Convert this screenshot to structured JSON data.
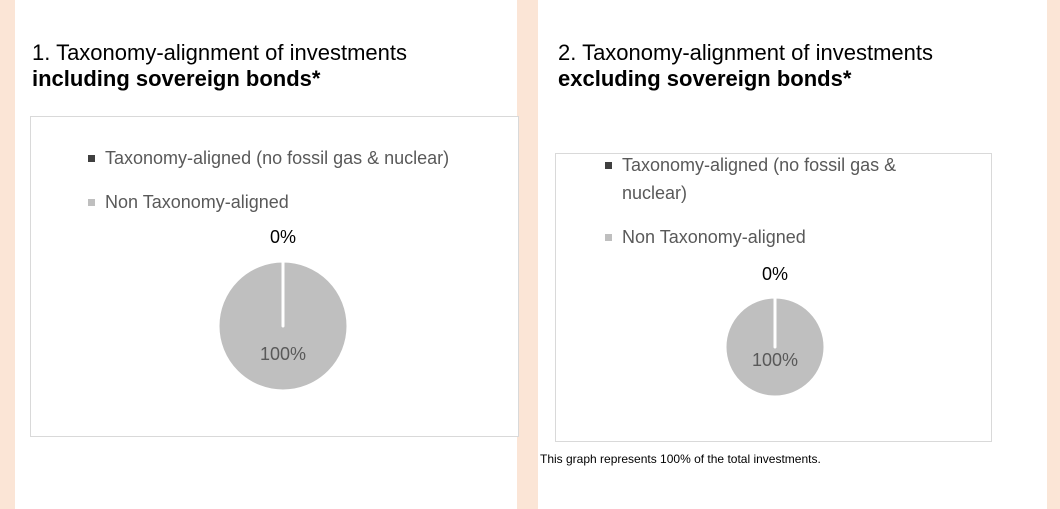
{
  "chart_data": [
    {
      "type": "pie",
      "title": "1. Taxonomy-alignment of investments",
      "subtitle": "including sovereign bonds*",
      "categories": [
        "Taxonomy-aligned (no fossil gas & nuclear)",
        "Non Taxonomy-aligned"
      ],
      "values": [
        0,
        100
      ],
      "value_labels": [
        "0%",
        "100%"
      ],
      "colors": [
        "#404040",
        "#bfbfbf"
      ],
      "legend": "top"
    },
    {
      "type": "pie",
      "title": "2. Taxonomy-alignment of investments",
      "subtitle": "excluding sovereign bonds*",
      "categories": [
        "Taxonomy-aligned (no fossil gas & nuclear)",
        "Non Taxonomy-aligned"
      ],
      "values": [
        0,
        100
      ],
      "value_labels": [
        "0%",
        "100%"
      ],
      "colors": [
        "#404040",
        "#bfbfbf"
      ],
      "legend": "top"
    }
  ],
  "footnote": "This graph represents 100% of the total investments."
}
